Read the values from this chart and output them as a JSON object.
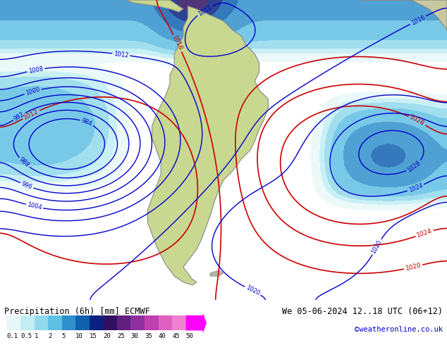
{
  "title_left": "Precipitation (6h) [mm] ECMWF",
  "title_right": "We 05-06-2024 12..18 UTC (06+12)",
  "credit": "©weatheronline.co.uk",
  "colorbar_values": [
    0.1,
    0.5,
    1,
    2,
    5,
    10,
    15,
    20,
    25,
    30,
    35,
    40,
    45,
    50
  ],
  "colorbar_colors": [
    "#e0f8f8",
    "#b0e8f0",
    "#80d0e8",
    "#50b8e0",
    "#2090d0",
    "#1060b0",
    "#082080",
    "#301060",
    "#602080",
    "#9030a0",
    "#c040b0",
    "#e060c0",
    "#f080d0",
    "#ff00ff"
  ],
  "background_color": "#ffffff",
  "map_background": "#f0f0f0",
  "fig_width": 6.34,
  "fig_height": 4.9,
  "dpi": 100,
  "slp_blue_color": "#0000cc",
  "slp_red_color": "#cc0000",
  "land_color_yellow": "#d4e8a0",
  "land_color_gray": "#b0b0b0",
  "ocean_color_light": "#e8f4f8"
}
